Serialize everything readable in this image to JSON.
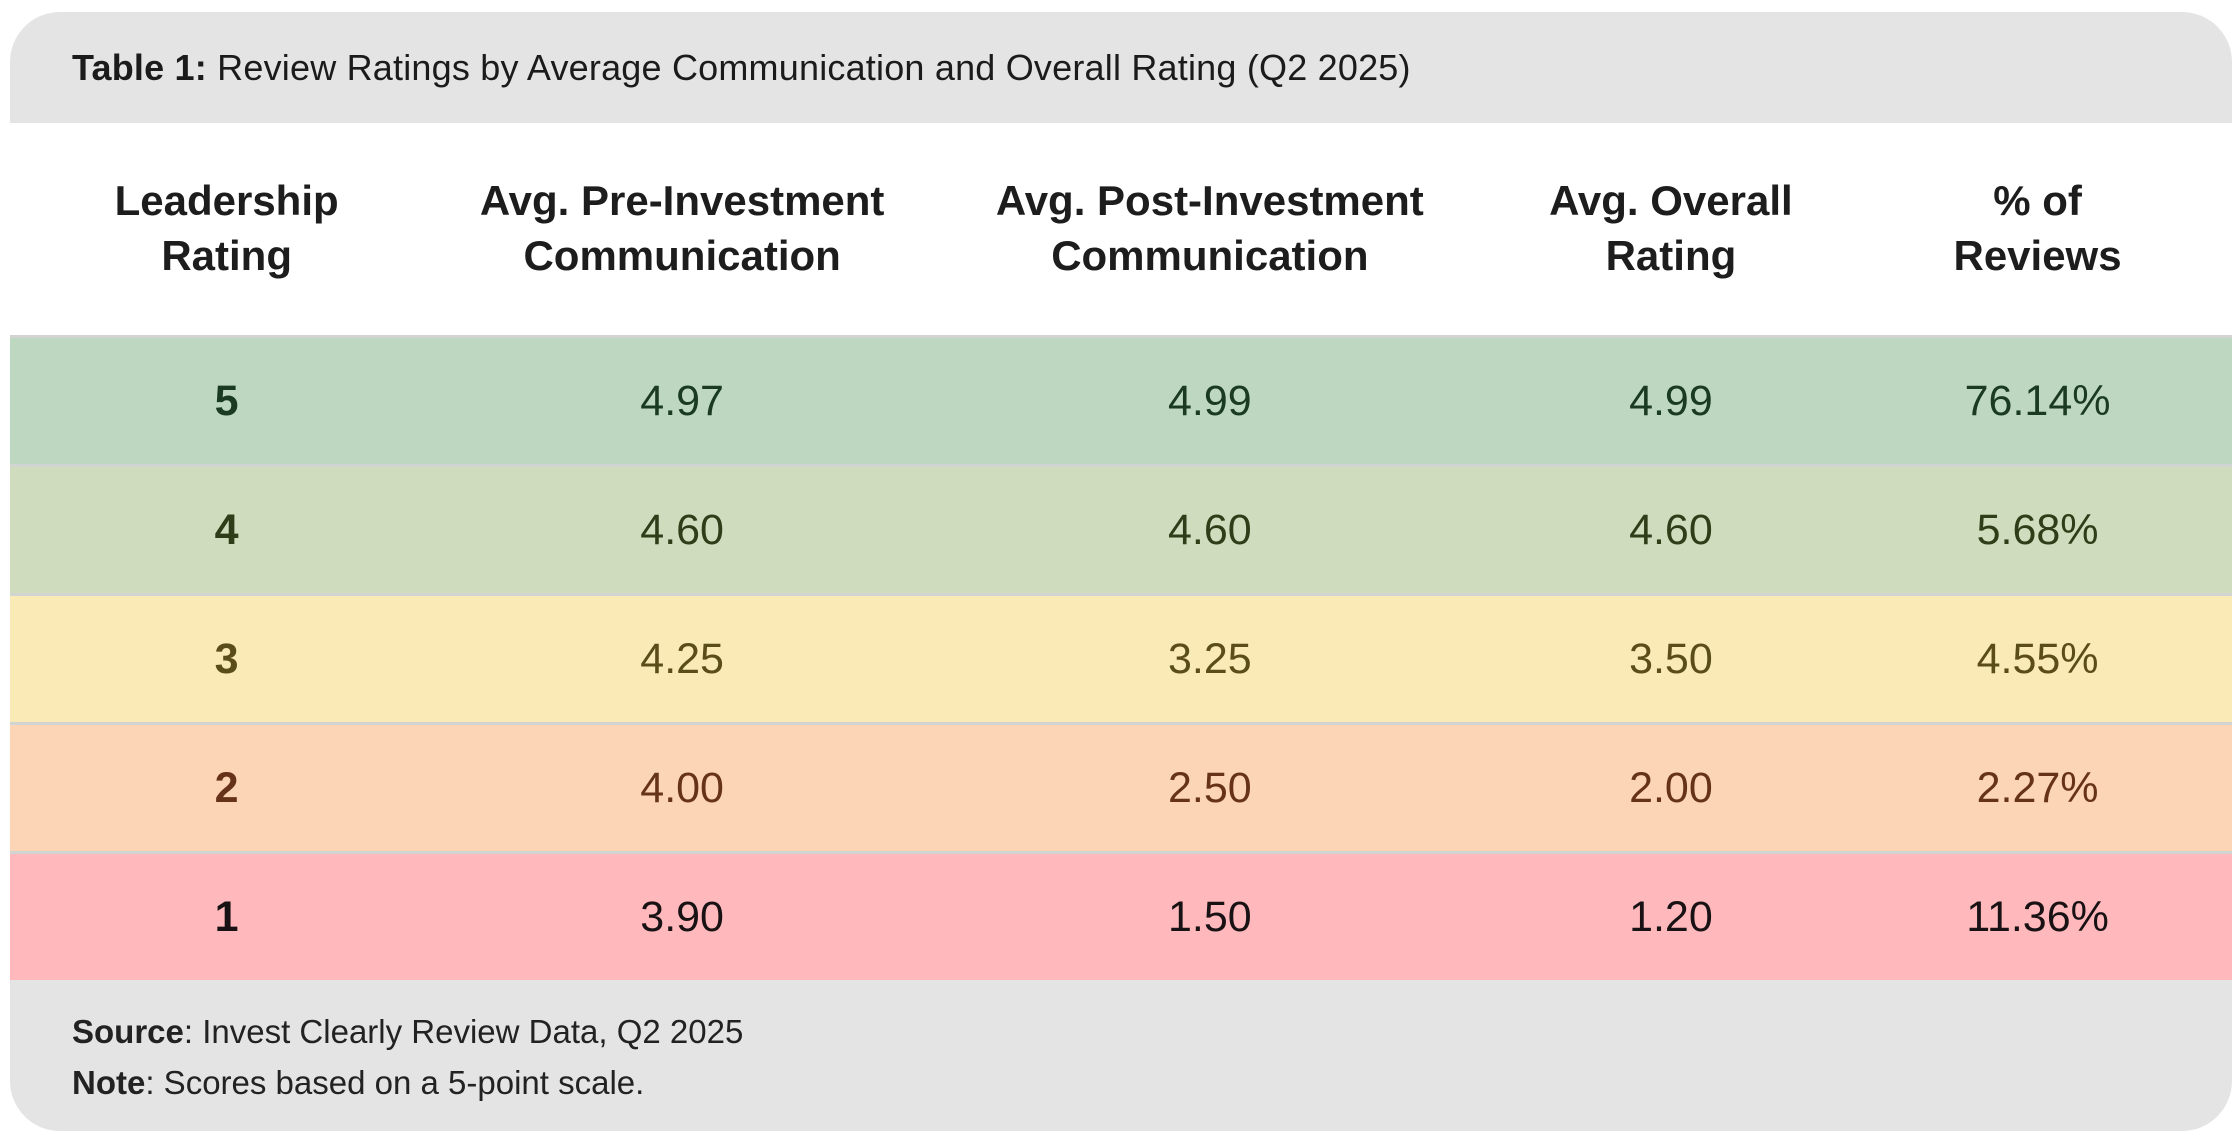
{
  "title": {
    "prefix": "Table 1:",
    "text": " Review Ratings by Average Communication and Overall Rating (Q2 2025)"
  },
  "table": {
    "headers": [
      {
        "line1": "Leadership",
        "line2": "Rating"
      },
      {
        "line1": "Avg. Pre-Investment",
        "line2": "Communication"
      },
      {
        "line1": "Avg. Post-Investment",
        "line2": "Communication"
      },
      {
        "line1": "Avg. Overall",
        "line2": "Rating"
      },
      {
        "line1": "% of",
        "line2": "Reviews"
      }
    ],
    "rows": [
      {
        "cells": [
          "5",
          "4.97",
          "4.99",
          "4.99",
          "76.14%"
        ],
        "bg": "#bed7c0",
        "fg": "#1a3a22"
      },
      {
        "cells": [
          "4",
          "4.60",
          "4.60",
          "4.60",
          "5.68%"
        ],
        "bg": "#cfdcbe",
        "fg": "#2f3d18"
      },
      {
        "cells": [
          "3",
          "4.25",
          "3.25",
          "3.50",
          "4.55%"
        ],
        "bg": "#faeab5",
        "fg": "#5b4d1a"
      },
      {
        "cells": [
          "2",
          "4.00",
          "2.50",
          "2.00",
          "2.27%"
        ],
        "bg": "#fcd5b6",
        "fg": "#66331a"
      },
      {
        "cells": [
          "1",
          "3.90",
          "1.50",
          "1.20",
          "11.36%"
        ],
        "bg": "#ffb9bd",
        "fg": "#191214"
      }
    ]
  },
  "footer": {
    "source_label": "Source",
    "source_text": ": Invest Clearly Review Data, Q2 2025",
    "note_label": "Note",
    "note_text": ": Scores based on a 5-point scale."
  },
  "chart_data": {
    "type": "table",
    "title": "Table 1: Review Ratings by Average Communication and Overall Rating (Q2 2025)",
    "columns": [
      "Leadership Rating",
      "Avg. Pre-Investment Communication",
      "Avg. Post-Investment Communication",
      "Avg. Overall Rating",
      "% of Reviews"
    ],
    "rows": [
      [
        5,
        4.97,
        4.99,
        4.99,
        "76.14%"
      ],
      [
        4,
        4.6,
        4.6,
        4.6,
        "5.68%"
      ],
      [
        3,
        4.25,
        3.25,
        3.5,
        "4.55%"
      ],
      [
        2,
        4.0,
        2.5,
        2.0,
        "2.27%"
      ],
      [
        1,
        3.9,
        1.5,
        1.2,
        "11.36%"
      ]
    ],
    "row_color_scale": [
      "#bed7c0",
      "#cfdcbe",
      "#faeab5",
      "#fcd5b6",
      "#ffb9bd"
    ],
    "source": "Invest Clearly Review Data, Q2 2025",
    "note": "Scores based on a 5-point scale."
  }
}
